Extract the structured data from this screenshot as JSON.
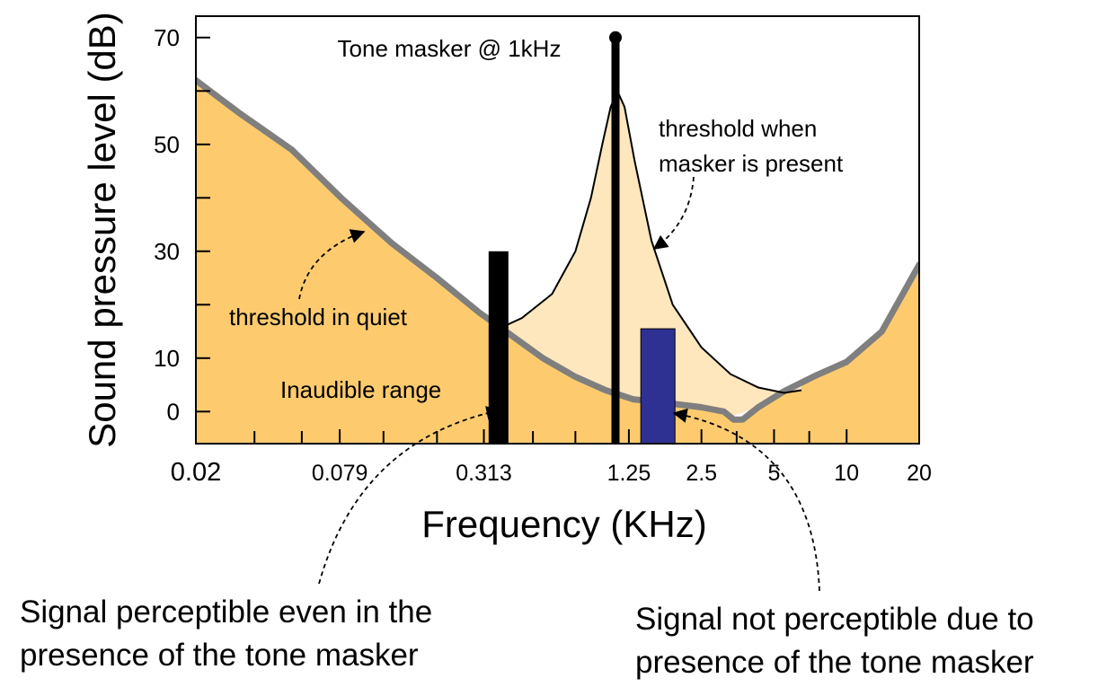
{
  "colors": {
    "inaudible_fill": "#fdcb6e",
    "masked_fill": "#fee7bd",
    "quiet_threshold_line": "#7f7f7f",
    "masker_bar": "#000000",
    "audible_signal_bar": "#000000",
    "masked_signal_bar": "#2e3192",
    "axis": "#000000"
  },
  "chart_data": {
    "type": "area",
    "title": "",
    "xlabel": "Frequency (KHz)",
    "ylabel": "Sound pressure level (dB)",
    "x_scale": "log",
    "xlim": [
      0.02,
      20
    ],
    "ylim": [
      -6,
      74
    ],
    "x_ticks": [
      {
        "value": 0.02,
        "label": "0.02"
      },
      {
        "value": 0.079,
        "label": "0.079"
      },
      {
        "value": 0.313,
        "label": "0.313"
      },
      {
        "value": 1.25,
        "label": "1.25"
      },
      {
        "value": 2.5,
        "label": "2.5"
      },
      {
        "value": 5,
        "label": "5"
      },
      {
        "value": 10,
        "label": "10"
      },
      {
        "value": 20,
        "label": "20"
      }
    ],
    "x_minor_ticks": [
      0.035,
      0.055,
      0.12,
      0.2,
      0.5,
      0.75,
      3.5,
      7
    ],
    "y_ticks": [
      {
        "value": 0,
        "label": "0"
      },
      {
        "value": 10,
        "label": "10"
      },
      {
        "value": 20,
        "label": ""
      },
      {
        "value": 30,
        "label": "30"
      },
      {
        "value": 40,
        "label": ""
      },
      {
        "value": 50,
        "label": "50"
      },
      {
        "value": 60,
        "label": ""
      },
      {
        "value": 70,
        "label": "70"
      }
    ],
    "grid": false,
    "series": [
      {
        "x": [
          0.02,
          0.03,
          0.05,
          0.08,
          0.13,
          0.2,
          0.3,
          0.4,
          0.55,
          0.75,
          1.0,
          1.3,
          1.8,
          2.5,
          3.1,
          3.4,
          3.7,
          4.3,
          5.5,
          7.5,
          10,
          14,
          20
        ],
        "y": [
          62,
          56,
          49,
          40,
          31.5,
          25,
          18.5,
          14.5,
          10,
          6.5,
          4,
          2.3,
          1.6,
          0.8,
          0,
          -1.5,
          -1.5,
          0.8,
          3.8,
          6.8,
          9.3,
          15,
          27.5
        ]
      },
      {
        "x": [
          0.36,
          0.45,
          0.6,
          0.75,
          0.87,
          0.97,
          1.05,
          1.12,
          1.2,
          1.32,
          1.55,
          1.9,
          2.5,
          3.3,
          4.3,
          5.5,
          6.5
        ],
        "y": [
          15.5,
          17.5,
          22,
          30,
          40,
          50,
          57,
          60,
          57,
          47,
          32,
          20,
          12,
          7,
          4.5,
          3.5,
          4
        ]
      },
      {
        "type": "bar",
        "x": [
          0.36,
          1.1,
          1.65
        ],
        "y": [
          30,
          70,
          15.5
        ]
      }
    ],
    "annotations": [
      {
        "text": "Tone masker @ 1kHz"
      },
      {
        "text": "threshold when"
      },
      {
        "text": "masker is present"
      },
      {
        "text": "threshold in quiet"
      },
      {
        "text": "Inaudible range"
      }
    ]
  },
  "captions": {
    "left_line1": "Signal perceptible even in the",
    "left_line2": "presence of the tone masker",
    "right_line1": "Signal not perceptible due to",
    "right_line2": "presence of the tone masker"
  }
}
